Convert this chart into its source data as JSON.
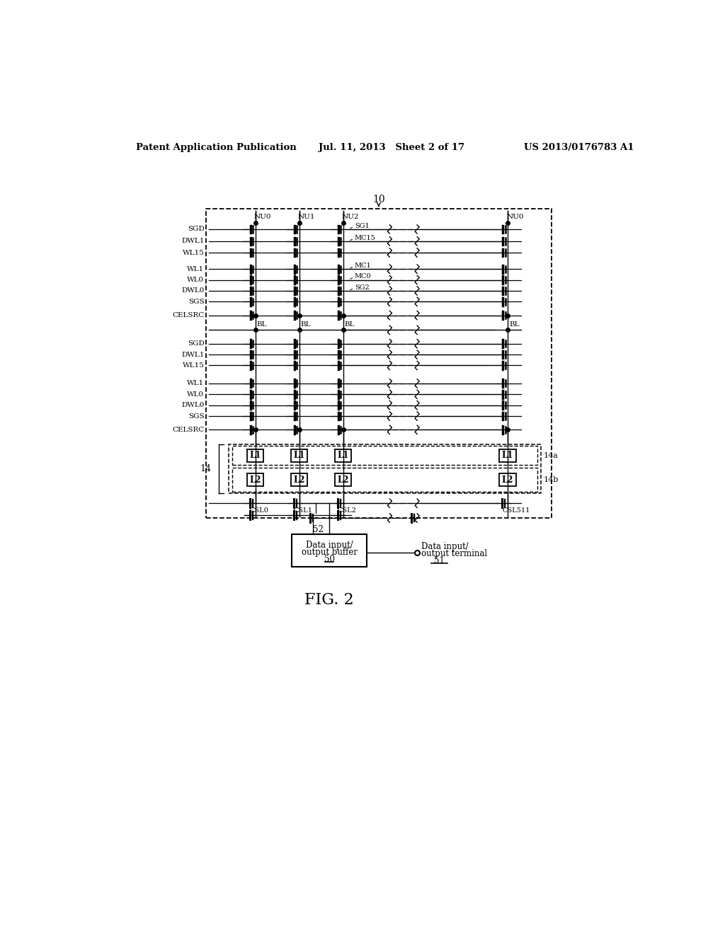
{
  "bg_color": "#ffffff",
  "header_left": "Patent Application Publication",
  "header_center": "Jul. 11, 2013   Sheet 2 of 17",
  "header_right": "US 2013/0176783 A1",
  "fig_label": "FIG. 2",
  "label_10": "10",
  "label_14": "14",
  "label_14a": "14a",
  "label_14b": "14b",
  "label_52": "52",
  "label_50": "50",
  "label_51": "51",
  "col_labels": [
    "NU0",
    "NU1",
    "NU2",
    "NU0"
  ],
  "mc_labels_top": [
    "SG1",
    "MC15",
    "MC1",
    "MC0",
    "SG2"
  ],
  "csl_labels": [
    "CSL0",
    "CSL1",
    "CSL2",
    "CSL511"
  ],
  "bl_label": "BL",
  "wordlines_top": [
    "SGD",
    "DWL1",
    "WL15",
    "WL1",
    "WL0",
    "DWL0",
    "SGS",
    "CELSRC"
  ],
  "wordlines_bot": [
    "SGD",
    "DWL1",
    "WL15",
    "WL1",
    "WL0",
    "DWL0",
    "SGS",
    "CELSRC"
  ]
}
